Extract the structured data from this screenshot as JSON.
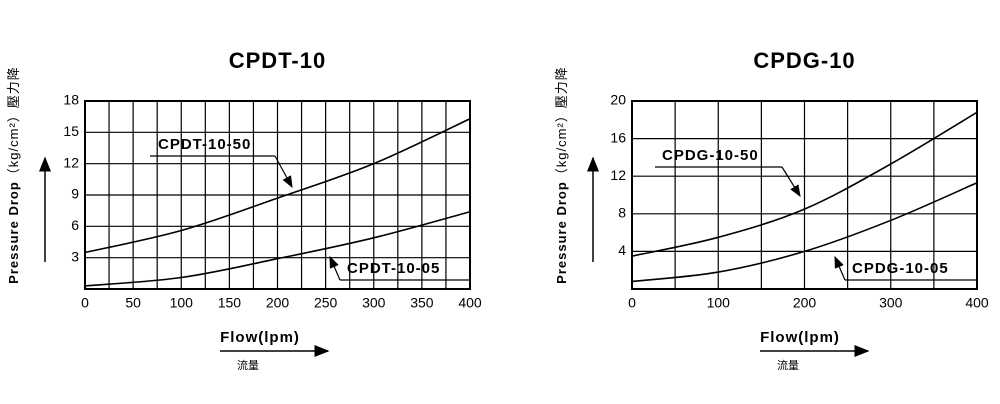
{
  "chart_data": [
    {
      "type": "line",
      "title": "CPDT-10",
      "y_label": "Pressure Drop",
      "y_unit": "（kg/cm²）",
      "y_label_cn": "壓力降",
      "x_label": "Flow(lpm)",
      "x_label_cn": "流量",
      "x": [
        0,
        100,
        200,
        300,
        400
      ],
      "series": [
        {
          "name": "CPDT-10-50",
          "color": "#000000",
          "values": [
            3.5,
            5.6,
            8.7,
            12,
            16.3
          ]
        },
        {
          "name": "CPDT-10-05",
          "color": "#000000",
          "values": [
            0.3,
            1.1,
            2.9,
            4.9,
            7.4
          ]
        }
      ],
      "xlim": [
        0,
        400
      ],
      "xticks": [
        0,
        50,
        100,
        150,
        200,
        250,
        300,
        350,
        400
      ],
      "ylim": [
        0,
        18
      ],
      "yticks": [
        3,
        6,
        9,
        12,
        15,
        18
      ],
      "grid": true
    },
    {
      "type": "line",
      "title": "CPDG-10",
      "y_label": "Pressure Drop",
      "y_unit": "（kg/cm²）",
      "y_label_cn": "壓力降",
      "x_label": "Flow(lpm)",
      "x_label_cn": "流量",
      "x": [
        0,
        100,
        200,
        300,
        400
      ],
      "series": [
        {
          "name": "CPDG-10-50",
          "color": "#000000",
          "values": [
            3.5,
            5.5,
            8.5,
            13.3,
            18.8
          ]
        },
        {
          "name": "CPDG-10-05",
          "color": "#000000",
          "values": [
            0.8,
            1.8,
            4,
            7.3,
            11.3
          ]
        }
      ],
      "xlim": [
        0,
        400
      ],
      "xticks": [
        0,
        100,
        200,
        300,
        400
      ],
      "ylim": [
        0,
        20
      ],
      "yticks": [
        4,
        8,
        12,
        16,
        20
      ],
      "grid": true
    }
  ]
}
